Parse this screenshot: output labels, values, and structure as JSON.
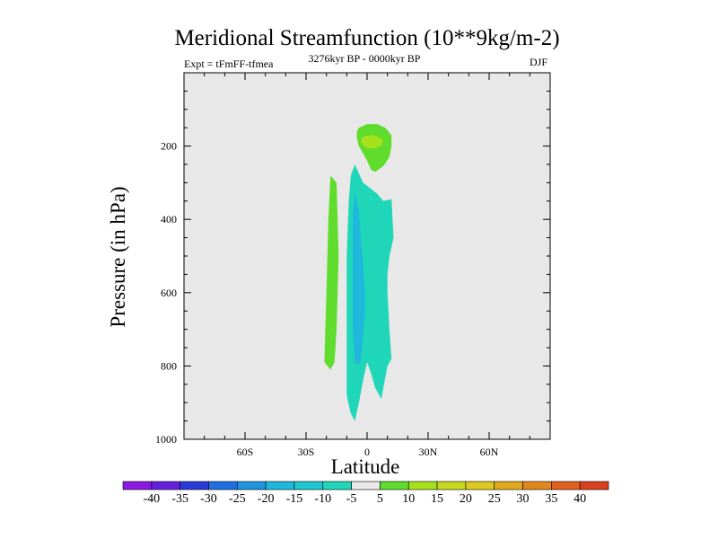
{
  "chart_data": {
    "type": "contour",
    "title": "Meridional Streamfunction (10**9kg/m-2)",
    "subtitle_left": "Expt = tFmFF-tfmea",
    "subtitle_center": "3276kyr BP - 0000kyr BP",
    "subtitle_right": "DJF",
    "xlabel": "Latitude",
    "ylabel": "Pressure (in hPa)",
    "xlim": [
      -90,
      90
    ],
    "ylim": [
      1000,
      0
    ],
    "x_ticks": [
      {
        "value": -60,
        "label": "60S"
      },
      {
        "value": -30,
        "label": "30S"
      },
      {
        "value": 0,
        "label": "0"
      },
      {
        "value": 30,
        "label": "30N"
      },
      {
        "value": 60,
        "label": "60N"
      }
    ],
    "y_ticks": [
      {
        "value": 200,
        "label": "200"
      },
      {
        "value": 400,
        "label": "400"
      },
      {
        "value": 600,
        "label": "600"
      },
      {
        "value": 800,
        "label": "800"
      },
      {
        "value": 1000,
        "label": "1000"
      }
    ],
    "background_color": "#e8e8e8",
    "regions": [
      {
        "name": "sh-positive-band",
        "level": "5 to 10",
        "color": "#5fdc2c",
        "polygon": [
          [
            -18,
            280
          ],
          [
            -15,
            300
          ],
          [
            -14,
            500
          ],
          [
            -15,
            700
          ],
          [
            -16,
            790
          ],
          [
            -18,
            810
          ],
          [
            -21,
            790
          ],
          [
            -20,
            600
          ],
          [
            -19,
            400
          ]
        ]
      },
      {
        "name": "eq-negative-cell",
        "level": "-10 to -5",
        "color": "#1fd6b8",
        "polygon": [
          [
            -6,
            250
          ],
          [
            -2,
            300
          ],
          [
            5,
            330
          ],
          [
            8,
            350
          ],
          [
            12,
            345
          ],
          [
            13,
            450
          ],
          [
            11,
            500
          ],
          [
            10,
            550
          ],
          [
            10,
            600
          ],
          [
            11,
            700
          ],
          [
            12,
            780
          ],
          [
            10,
            800
          ],
          [
            8,
            860
          ],
          [
            7,
            890
          ],
          [
            4,
            860
          ],
          [
            2,
            820
          ],
          [
            0,
            790
          ],
          [
            -2,
            840
          ],
          [
            -4,
            900
          ],
          [
            -6,
            950
          ],
          [
            -8,
            930
          ],
          [
            -10,
            880
          ],
          [
            -10,
            700
          ],
          [
            -10,
            500
          ],
          [
            -9,
            350
          ],
          [
            -8,
            280
          ]
        ]
      },
      {
        "name": "eq-negative-core",
        "level": "-15 to -10",
        "color": "#1fb8dd",
        "polygon": [
          [
            -6,
            320
          ],
          [
            -4,
            380
          ],
          [
            -3,
            450
          ],
          [
            -2,
            520
          ],
          [
            -1,
            600
          ],
          [
            -1,
            660
          ],
          [
            -2,
            720
          ],
          [
            -3,
            780
          ],
          [
            -4,
            800
          ],
          [
            -6,
            790
          ],
          [
            -7,
            700
          ],
          [
            -7,
            600
          ],
          [
            -7,
            500
          ],
          [
            -7,
            400
          ]
        ]
      },
      {
        "name": "upper-positive-cell",
        "level": "5 to 10",
        "color": "#5fdc2c",
        "polygon": [
          [
            -4,
            150
          ],
          [
            0,
            140
          ],
          [
            5,
            140
          ],
          [
            9,
            150
          ],
          [
            12,
            170
          ],
          [
            12,
            200
          ],
          [
            11,
            230
          ],
          [
            8,
            255
          ],
          [
            4,
            270
          ],
          [
            2,
            265
          ],
          [
            0,
            240
          ],
          [
            -2,
            220
          ],
          [
            -4,
            200
          ],
          [
            -5,
            180
          ],
          [
            -5,
            160
          ]
        ]
      },
      {
        "name": "upper-positive-core",
        "level": "10 to 15",
        "color": "#a6e01a",
        "polygon": [
          [
            -3,
            180
          ],
          [
            -1,
            172
          ],
          [
            3,
            170
          ],
          [
            6,
            176
          ],
          [
            8,
            185
          ],
          [
            7,
            198
          ],
          [
            4,
            206
          ],
          [
            0,
            206
          ],
          [
            -2,
            198
          ],
          [
            -3,
            190
          ]
        ]
      }
    ],
    "colorbar": {
      "levels": [
        "-40",
        "-35",
        "-30",
        "-25",
        "-20",
        "-15",
        "-10",
        "-5",
        "5",
        "10",
        "15",
        "20",
        "25",
        "30",
        "35",
        "40"
      ],
      "colors": [
        "#8a1ae0",
        "#6220dc",
        "#2a3ad8",
        "#1f6fe0",
        "#1f93e0",
        "#1fb8dd",
        "#1fc8d0",
        "#1fd6b8",
        "#e8e8e8",
        "#5fdc2c",
        "#a6e01a",
        "#c8d81e",
        "#dcc81e",
        "#e0a81e",
        "#e0881e",
        "#e0601e",
        "#d8401e"
      ]
    }
  }
}
